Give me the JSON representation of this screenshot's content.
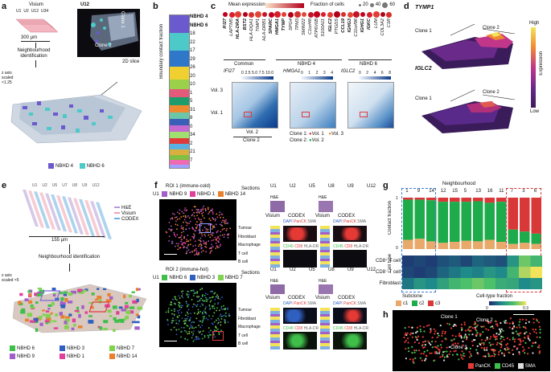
{
  "panels": {
    "a": "a",
    "b": "b",
    "c": "c",
    "d": "d",
    "e": "e",
    "f": "f",
    "g": "g",
    "h": "h"
  },
  "colors": {
    "nbhd4": "#6a5acd",
    "nbhd6": "#4ec9c9",
    "tissue": "#aab8c8",
    "heat_low": "#3b1c5a",
    "heat_high": "#f3e35a",
    "c1": "#e8a96a",
    "c2": "#1eab4c",
    "c3": "#d93838",
    "panck": "#e53935",
    "cd45": "#3fbf4a",
    "sma": "#dddddd"
  },
  "a": {
    "visium": "Visium",
    "sections": [
      "U1",
      "U2",
      "U12",
      "U34"
    ],
    "scale": "300 µm",
    "neighbourhood_id": "Neighbourhood identification",
    "inset_title": "U12",
    "clone1": "Clone 1",
    "clone2": "Clone 2",
    "slice": "2D slice",
    "zaxis": "z axis scaled ×1.25",
    "legend": [
      "NBHD 4",
      "NBHD 6"
    ]
  },
  "b": {
    "ylabel": "Boundary contact fraction",
    "labels": [
      "NBHD 4",
      "NBHD 6",
      "18",
      "22",
      "17",
      "29",
      "26",
      "20",
      "10",
      "1",
      "5",
      "31",
      "8",
      "0",
      "34",
      "2",
      "21",
      "7"
    ]
  },
  "c": {
    "legend_mean": "Mean expression",
    "legend_frac": "Fraction of cells",
    "frac_sizes": [
      "20",
      "40",
      "60"
    ],
    "genes": [
      {
        "g": "IFI27",
        "b": true
      },
      {
        "g": "LAPTM5",
        "b": false
      },
      {
        "g": "HLA-DRA",
        "b": true
      },
      {
        "g": "BST2",
        "b": true
      },
      {
        "g": "HLA-DQA1",
        "b": false
      },
      {
        "g": "TIMP1",
        "b": false
      },
      {
        "g": "HLA-DRB1",
        "b": false
      },
      {
        "g": "SPARC",
        "b": true
      },
      {
        "g": "HMGA1",
        "b": true
      },
      {
        "g": "TYMP",
        "b": true
      },
      {
        "g": "SPG4",
        "b": false
      },
      {
        "g": "TPM3",
        "b": false
      },
      {
        "g": "SMIM22",
        "b": false
      },
      {
        "g": "C1orf48",
        "b": false
      },
      {
        "g": "ATP6V0B",
        "b": false
      },
      {
        "g": "S100A11",
        "b": false
      },
      {
        "g": "IGLC2",
        "b": true
      },
      {
        "g": "PTGDS",
        "b": false
      },
      {
        "g": "CCL19",
        "b": true
      },
      {
        "g": "IGHG3",
        "b": true
      },
      {
        "g": "C11orf96",
        "b": false
      },
      {
        "g": "IGHG1",
        "b": true
      },
      {
        "g": "IGKC",
        "b": true
      },
      {
        "g": "LUM",
        "b": false
      },
      {
        "g": "COL3A2",
        "b": false
      },
      {
        "g": "C1R",
        "b": false
      }
    ],
    "groups": [
      "Common",
      "NBHD 4",
      "NBHD 6"
    ],
    "maps": [
      {
        "gene": "IFI27",
        "ticks": [
          "0",
          "2.5",
          "5.0",
          "7.5",
          "10.0"
        ]
      },
      {
        "gene": "HMGA1",
        "ticks": [
          "0",
          "1",
          "2",
          "3",
          "4"
        ]
      },
      {
        "gene": "IGLC2",
        "ticks": [
          "0",
          "2",
          "4",
          "6",
          "8"
        ]
      }
    ],
    "vol3": "Vol. 3",
    "vol1": "Vol. 1",
    "vol2": "Vol. 2",
    "clone2": "Clone 2",
    "clone1_key": "Clone 1:",
    "clone2_key": "Clone 2:",
    "key_vol1": "Vol. 1",
    "key_vol2": "Vol. 2",
    "key_vol3": "Vol. 3"
  },
  "d": {
    "gene1": "TYMP1",
    "gene2": "IGLC2",
    "clone1": "Clone 1",
    "clone2": "Clone 2",
    "cb_high": "High",
    "cb_low": "Low",
    "cb_label": "Expression"
  },
  "e": {
    "sections": [
      "U1",
      "U2",
      "U5",
      "U7",
      "U8",
      "U9",
      "U12"
    ],
    "legend": [
      "H&E",
      "Visium",
      "CODEX"
    ],
    "scale": "155 µm",
    "neighbourhood_id": "Neighbourhood identification",
    "zaxis": "z axis scaled ×5",
    "nbhd_legend": [
      {
        "label": "NBHD 6",
        "color": "#3fbf4a"
      },
      {
        "label": "NBHD 3",
        "color": "#2f5fbf"
      },
      {
        "label": "NBHD 7",
        "color": "#7fd34e"
      },
      {
        "label": "NBHD 9",
        "color": "#a25fc9"
      },
      {
        "label": "NBHD 1",
        "color": "#e0409a"
      },
      {
        "label": "NBHD 14",
        "color": "#e8812f"
      }
    ]
  },
  "f": {
    "roi1": "ROI 1 (immune-cold)",
    "roi1_legend": [
      {
        "label": "NBHD 9",
        "color": "#a25fc9"
      },
      {
        "label": "NBHD 1",
        "color": "#e0409a"
      },
      {
        "label": "NBHD 14",
        "color": "#e8812f"
      }
    ],
    "roi2": "ROI 2 (immune-hot)",
    "roi2_legend": [
      {
        "label": "NBHD 6",
        "color": "#3fbf4a"
      },
      {
        "label": "NBHD 3",
        "color": "#2f5fbf"
      },
      {
        "label": "NBHD 7",
        "color": "#7fd34e"
      }
    ],
    "u1": "U1",
    "sections_label": "Sections",
    "cols": [
      "U1",
      "U2",
      "U5",
      "U8",
      "U9",
      "U12"
    ],
    "he": "H&E",
    "visium": "Visium",
    "codex": "CODEX",
    "rows": [
      "Tumour",
      "Fibroblast",
      "Macrophage",
      "T cell",
      "B cell"
    ],
    "codex_a": [
      "DAPI",
      "PanCK",
      "SMA"
    ],
    "codex_b": [
      "CD45",
      "CD8",
      "HLA-DR"
    ]
  },
  "g": {
    "title": "Neighbourhood",
    "nbhds": [
      "1",
      "9",
      "14",
      "12",
      "15",
      "5",
      "13",
      "16",
      "11",
      "7",
      "3",
      "6"
    ],
    "contact_fraction": "Contact fraction",
    "cf_ticks": [
      "1",
      "0"
    ],
    "cell_type": "Cell type",
    "cell_rows": [
      "CD8⁺ T cell",
      "CD8⁻ T cell",
      "Fibroblast"
    ],
    "subclone": "Subclone",
    "subclone_keys": [
      "c1",
      "c2",
      "c3"
    ],
    "frac_label": "Cell-type fraction",
    "frac_ticks": [
      "0",
      "0.3"
    ],
    "cf_data": [
      [
        0.18,
        0.78,
        0.04
      ],
      [
        0.2,
        0.76,
        0.04
      ],
      [
        0.15,
        0.8,
        0.05
      ],
      [
        0.12,
        0.8,
        0.08
      ],
      [
        0.14,
        0.78,
        0.08
      ],
      [
        0.16,
        0.76,
        0.08
      ],
      [
        0.15,
        0.78,
        0.07
      ],
      [
        0.18,
        0.72,
        0.1
      ],
      [
        0.14,
        0.78,
        0.08
      ],
      [
        0.1,
        0.28,
        0.62
      ],
      [
        0.12,
        0.22,
        0.66
      ],
      [
        0.1,
        0.2,
        0.7
      ]
    ],
    "cell_data": [
      [
        0.02,
        0.03,
        0.02,
        0.04,
        0.05,
        0.03,
        0.06,
        0.05,
        0.04,
        0.12,
        0.22,
        0.18
      ],
      [
        0.03,
        0.02,
        0.03,
        0.06,
        0.08,
        0.1,
        0.09,
        0.12,
        0.1,
        0.18,
        0.26,
        0.3
      ],
      [
        0.08,
        0.12,
        0.1,
        0.14,
        0.18,
        0.2,
        0.22,
        0.2,
        0.16,
        0.15,
        0.1,
        0.12
      ]
    ]
  },
  "h": {
    "clone1": "Clone 1",
    "clone2": "Clone 2",
    "clone3": "Clone 3",
    "legend": [
      "PanCK",
      "CD45",
      "SMA"
    ]
  }
}
